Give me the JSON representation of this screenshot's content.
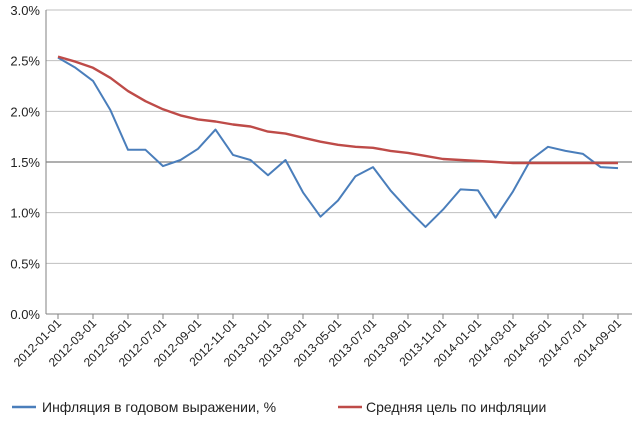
{
  "chart_data": {
    "type": "line",
    "x": [
      "2012-01-01",
      "2012-02-01",
      "2012-03-01",
      "2012-04-01",
      "2012-05-01",
      "2012-06-01",
      "2012-07-01",
      "2012-08-01",
      "2012-09-01",
      "2012-10-01",
      "2012-11-01",
      "2012-12-01",
      "2013-01-01",
      "2013-02-01",
      "2013-03-01",
      "2013-04-01",
      "2013-05-01",
      "2013-06-01",
      "2013-07-01",
      "2013-08-01",
      "2013-09-01",
      "2013-10-01",
      "2013-11-01",
      "2013-12-01",
      "2014-01-01",
      "2014-02-01",
      "2014-03-01",
      "2014-04-01",
      "2014-05-01",
      "2014-06-01",
      "2014-07-01",
      "2014-08-01",
      "2014-09-01"
    ],
    "x_tick_labels": [
      "2012-01-01",
      "2012-03-01",
      "2012-05-01",
      "2012-07-01",
      "2012-09-01",
      "2012-11-01",
      "2013-01-01",
      "2013-03-01",
      "2013-05-01",
      "2013-07-01",
      "2013-09-01",
      "2013-11-01",
      "2014-01-01",
      "2014-03-01",
      "2014-05-01",
      "2014-07-01",
      "2014-09-01"
    ],
    "y_tick_labels": [
      "0.0%",
      "0.5%",
      "1.0%",
      "1.5%",
      "2.0%",
      "2.5%",
      "3.0%"
    ],
    "ylim": [
      0,
      3.0
    ],
    "reference_line": 1.5,
    "legend_position": "bottom",
    "series": [
      {
        "name": "Инфляция в годовом выражении, %",
        "color": "#4a7ebb",
        "values": [
          2.53,
          2.43,
          2.3,
          2.01,
          1.62,
          1.62,
          1.46,
          1.52,
          1.63,
          1.82,
          1.57,
          1.52,
          1.37,
          1.52,
          1.2,
          0.96,
          1.12,
          1.36,
          1.45,
          1.22,
          1.03,
          0.86,
          1.03,
          1.23,
          1.22,
          0.95,
          1.21,
          1.52,
          1.65,
          1.61,
          1.58,
          1.45,
          1.44
        ]
      },
      {
        "name": "Средняя цель по инфляции",
        "color": "#be4b48",
        "values": [
          2.54,
          2.49,
          2.43,
          2.33,
          2.2,
          2.1,
          2.02,
          1.96,
          1.92,
          1.9,
          1.87,
          1.85,
          1.8,
          1.78,
          1.74,
          1.7,
          1.67,
          1.65,
          1.64,
          1.61,
          1.59,
          1.56,
          1.53,
          1.52,
          1.51,
          1.5,
          1.49,
          1.49,
          1.49,
          1.49,
          1.49,
          1.49,
          1.49
        ]
      }
    ]
  }
}
